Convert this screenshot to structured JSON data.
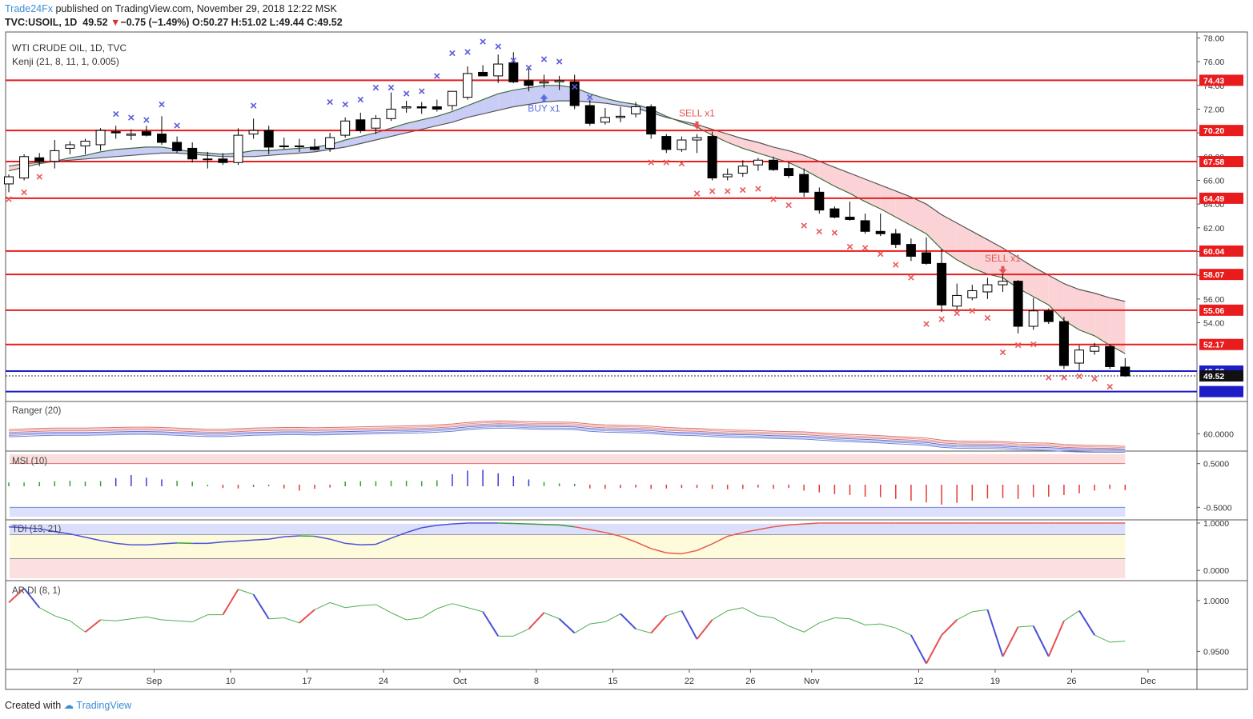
{
  "header": {
    "author": "Trade24Fx",
    "published": "published on TradingView.com, November 29, 2018 12:22 MSK",
    "symbol": "TVC:USOIL, 1D",
    "price": "49.52",
    "change": "−0.75 (−1.49%)",
    "ohlc": "O:50.27 H:51.02 L:49.44 C:49.52"
  },
  "overlay": {
    "title": "WTI CRUDE OIL, 1D, TVC",
    "indicator": "Kenji (21, 8, 11, 1, 0.005)"
  },
  "footer": {
    "created_with": "Created with",
    "brand": "TradingView"
  },
  "colors": {
    "red_line": "#e81c1c",
    "blue_line": "#1d1dc8",
    "cross_blue": "#5b5bdc",
    "cross_red": "#e85a5a",
    "cloud_blue": "#c9ccf5",
    "cloud_red": "#fbd3d6"
  },
  "chart_data": {
    "type": "candlestick",
    "title": "WTI CRUDE OIL, 1D, TVC",
    "ylim": [
      47.5,
      78.5
    ],
    "y_ticks": [
      "78.00",
      "76.00",
      "74.00",
      "72.00",
      "70.00",
      "68.00",
      "66.00",
      "64.00",
      "62.00",
      "60.00",
      "58.00",
      "56.00",
      "54.00"
    ],
    "x_ticks": [
      "27",
      "Sep",
      "10",
      "17",
      "24",
      "Oct",
      "8",
      "15",
      "22",
      "26",
      "Nov",
      "12",
      "19",
      "26",
      "Dec"
    ],
    "x_tick_index": [
      4.5,
      9.5,
      14.5,
      19.5,
      24.5,
      29.5,
      34.5,
      39.5,
      44.5,
      48.5,
      52.5,
      59.5,
      64.5,
      69.5,
      74.5
    ],
    "levels": [
      {
        "value": 74.43,
        "label": "74.43",
        "kind": "red"
      },
      {
        "value": 70.2,
        "label": "70.20",
        "kind": "red"
      },
      {
        "value": 67.58,
        "label": "67.58",
        "kind": "red"
      },
      {
        "value": 64.49,
        "label": "64.49",
        "kind": "red"
      },
      {
        "value": 60.04,
        "label": "60.04",
        "kind": "red"
      },
      {
        "value": 58.07,
        "label": "58.07",
        "kind": "red"
      },
      {
        "value": 55.06,
        "label": "55.06",
        "kind": "red"
      },
      {
        "value": 52.17,
        "label": "52.17",
        "kind": "red"
      },
      {
        "value": 49.93,
        "label": "49.93",
        "kind": "blue"
      },
      {
        "value": 48.2,
        "label": "",
        "kind": "blue"
      }
    ],
    "last_price": {
      "value": 49.52,
      "label": "49.52"
    },
    "ohlc": [
      [
        65.7,
        66.5,
        65.0,
        66.3
      ],
      [
        66.2,
        68.2,
        66.0,
        68.0
      ],
      [
        67.9,
        68.3,
        67.2,
        67.6
      ],
      [
        67.6,
        69.4,
        67.0,
        68.5
      ],
      [
        68.7,
        69.3,
        68.2,
        69.0
      ],
      [
        68.9,
        69.5,
        68.2,
        69.3
      ],
      [
        69.0,
        70.4,
        68.5,
        70.2
      ],
      [
        70.1,
        70.6,
        69.5,
        70.0
      ],
      [
        69.8,
        70.3,
        69.4,
        69.9
      ],
      [
        70.1,
        70.6,
        69.7,
        69.8
      ],
      [
        69.9,
        71.4,
        69.0,
        69.2
      ],
      [
        69.2,
        69.7,
        68.3,
        68.5
      ],
      [
        68.7,
        69.2,
        67.5,
        67.8
      ],
      [
        67.8,
        68.4,
        67.0,
        67.8
      ],
      [
        67.8,
        68.3,
        67.3,
        67.5
      ],
      [
        67.5,
        70.4,
        67.3,
        69.8
      ],
      [
        69.9,
        71.2,
        69.5,
        70.2
      ],
      [
        70.2,
        70.6,
        68.2,
        68.8
      ],
      [
        68.9,
        69.6,
        68.6,
        68.9
      ],
      [
        68.9,
        69.5,
        68.4,
        68.9
      ],
      [
        68.8,
        69.5,
        68.5,
        68.6
      ],
      [
        68.7,
        70.0,
        68.4,
        69.6
      ],
      [
        69.8,
        71.3,
        69.6,
        71.0
      ],
      [
        71.1,
        71.7,
        70.0,
        70.2
      ],
      [
        70.4,
        71.5,
        69.9,
        71.2
      ],
      [
        71.2,
        73.4,
        71.0,
        72.0
      ],
      [
        72.1,
        72.7,
        71.7,
        72.2
      ],
      [
        72.2,
        72.6,
        71.6,
        72.1
      ],
      [
        72.2,
        72.8,
        71.8,
        72.0
      ],
      [
        72.3,
        73.5,
        71.9,
        73.5
      ],
      [
        73.0,
        75.6,
        72.8,
        75.0
      ],
      [
        75.1,
        75.7,
        74.8,
        74.8
      ],
      [
        74.8,
        76.6,
        74.2,
        75.8
      ],
      [
        75.9,
        76.8,
        74.2,
        74.3
      ],
      [
        74.4,
        75.4,
        73.5,
        74.0
      ],
      [
        74.2,
        74.9,
        73.8,
        74.3
      ],
      [
        74.3,
        74.8,
        73.6,
        74.4
      ],
      [
        74.3,
        74.9,
        72.0,
        72.3
      ],
      [
        72.3,
        72.8,
        70.6,
        70.8
      ],
      [
        70.9,
        72.1,
        70.7,
        71.3
      ],
      [
        71.3,
        72.2,
        70.9,
        71.4
      ],
      [
        71.6,
        72.6,
        71.3,
        72.2
      ],
      [
        72.2,
        72.4,
        69.5,
        69.9
      ],
      [
        69.7,
        69.9,
        68.3,
        68.6
      ],
      [
        68.6,
        69.7,
        68.4,
        69.4
      ],
      [
        69.4,
        69.9,
        68.3,
        69.6
      ],
      [
        69.7,
        70.1,
        66.0,
        66.2
      ],
      [
        66.3,
        67.0,
        66.0,
        66.5
      ],
      [
        66.6,
        67.7,
        66.3,
        67.2
      ],
      [
        67.3,
        67.9,
        66.8,
        67.7
      ],
      [
        67.7,
        68.0,
        66.8,
        66.9
      ],
      [
        67.0,
        67.5,
        66.2,
        66.4
      ],
      [
        66.5,
        67.0,
        64.6,
        65.0
      ],
      [
        65.0,
        65.4,
        63.2,
        63.5
      ],
      [
        63.6,
        63.8,
        62.8,
        62.9
      ],
      [
        62.9,
        64.2,
        62.6,
        62.7
      ],
      [
        62.6,
        63.2,
        61.5,
        61.7
      ],
      [
        61.7,
        63.2,
        61.3,
        61.5
      ],
      [
        61.5,
        61.9,
        60.3,
        60.6
      ],
      [
        60.6,
        61.1,
        59.2,
        59.6
      ],
      [
        59.9,
        61.2,
        58.9,
        59.0
      ],
      [
        59.0,
        60.2,
        54.9,
        55.5
      ],
      [
        55.4,
        57.3,
        55.1,
        56.3
      ],
      [
        56.1,
        57.2,
        55.9,
        56.7
      ],
      [
        56.6,
        57.8,
        56.0,
        57.2
      ],
      [
        57.2,
        58.3,
        56.6,
        57.5
      ],
      [
        57.5,
        57.6,
        53.1,
        53.7
      ],
      [
        53.7,
        56.1,
        53.4,
        55.0
      ],
      [
        55.0,
        55.2,
        53.9,
        54.1
      ],
      [
        54.1,
        54.5,
        50.1,
        50.4
      ],
      [
        50.6,
        52.1,
        50.0,
        51.7
      ],
      [
        51.6,
        52.3,
        51.3,
        52.0
      ],
      [
        52.0,
        52.2,
        50.1,
        50.3
      ],
      [
        50.27,
        51.02,
        49.44,
        49.52
      ]
    ],
    "series_fast": [
      66.8,
      67.1,
      67.4,
      67.6,
      67.9,
      68.1,
      68.4,
      68.6,
      68.7,
      68.8,
      68.8,
      68.6,
      68.4,
      68.3,
      68.2,
      68.3,
      68.5,
      68.5,
      68.6,
      68.7,
      68.8,
      69.0,
      69.4,
      69.7,
      70.0,
      70.4,
      70.8,
      71.1,
      71.4,
      71.8,
      72.3,
      72.8,
      73.3,
      73.6,
      73.8,
      74.0,
      74.0,
      73.8,
      73.3,
      72.9,
      72.6,
      72.4,
      72.0,
      71.4,
      70.9,
      70.5,
      69.8,
      69.2,
      68.7,
      68.3,
      67.9,
      67.5,
      66.9,
      66.2,
      65.5,
      64.9,
      64.2,
      63.6,
      62.9,
      62.2,
      61.5,
      60.2,
      59.3,
      58.6,
      58.1,
      57.8,
      56.9,
      56.2,
      55.5,
      54.2,
      53.4,
      52.9,
      52.1,
      51.4
    ],
    "series_slow": [
      67.2,
      67.4,
      67.5,
      67.6,
      67.7,
      67.8,
      67.9,
      68.0,
      68.1,
      68.2,
      68.3,
      68.3,
      68.2,
      68.1,
      68.0,
      68.0,
      68.0,
      68.1,
      68.2,
      68.3,
      68.4,
      68.6,
      68.8,
      69.1,
      69.4,
      69.7,
      70.0,
      70.3,
      70.6,
      70.9,
      71.3,
      71.6,
      71.9,
      72.2,
      72.4,
      72.6,
      72.7,
      72.7,
      72.6,
      72.5,
      72.3,
      72.1,
      71.7,
      71.3,
      71.0,
      70.7,
      70.3,
      69.9,
      69.5,
      69.2,
      68.8,
      68.5,
      68.1,
      67.6,
      67.1,
      66.6,
      66.1,
      65.6,
      65.1,
      64.6,
      64.0,
      63.1,
      62.4,
      61.7,
      61.0,
      60.3,
      59.5,
      58.7,
      58.0,
      57.3,
      56.8,
      56.5,
      56.1,
      55.8
    ],
    "crosses_blue": [
      [
        7,
        71.6
      ],
      [
        8,
        71.3
      ],
      [
        9,
        71.1
      ],
      [
        10,
        72.4
      ],
      [
        11,
        70.6
      ],
      [
        16,
        72.3
      ],
      [
        21,
        72.6
      ],
      [
        22,
        72.4
      ],
      [
        23,
        72.8
      ],
      [
        24,
        73.8
      ],
      [
        25,
        73.8
      ],
      [
        26,
        73.3
      ],
      [
        27,
        73.5
      ],
      [
        28,
        74.8
      ],
      [
        29,
        76.7
      ],
      [
        30,
        76.8
      ],
      [
        31,
        77.7
      ],
      [
        32,
        77.3
      ],
      [
        33,
        76.1
      ],
      [
        34,
        75.5
      ],
      [
        35,
        76.2
      ],
      [
        36,
        76.0
      ],
      [
        37,
        73.9
      ],
      [
        38,
        73.0
      ]
    ],
    "crosses_red": [
      [
        0,
        64.4
      ],
      [
        1,
        65.0
      ],
      [
        2,
        66.3
      ],
      [
        42,
        67.5
      ],
      [
        43,
        67.5
      ],
      [
        44,
        67.4
      ],
      [
        45,
        64.9
      ],
      [
        46,
        65.1
      ],
      [
        47,
        65.1
      ],
      [
        48,
        65.2
      ],
      [
        49,
        65.3
      ],
      [
        50,
        64.4
      ],
      [
        51,
        63.9
      ],
      [
        52,
        62.2
      ],
      [
        53,
        61.7
      ],
      [
        54,
        61.6
      ],
      [
        55,
        60.4
      ],
      [
        56,
        60.3
      ],
      [
        57,
        59.8
      ],
      [
        58,
        58.9
      ],
      [
        59,
        57.8
      ],
      [
        60,
        53.9
      ],
      [
        61,
        54.3
      ],
      [
        62,
        54.8
      ],
      [
        63,
        55.0
      ],
      [
        64,
        54.4
      ],
      [
        65,
        51.5
      ],
      [
        66,
        52.1
      ],
      [
        67,
        52.2
      ],
      [
        68,
        49.4
      ],
      [
        69,
        49.4
      ],
      [
        70,
        49.5
      ],
      [
        71,
        49.3
      ],
      [
        72,
        48.6
      ]
    ],
    "signals": [
      {
        "index": 35,
        "label": "BUY x1",
        "kind": "buy",
        "value": 73.0
      },
      {
        "index": 45,
        "label": "SELL x1",
        "kind": "sell",
        "value": 70.7
      },
      {
        "index": 65,
        "label": "SELL x1",
        "kind": "sell",
        "value": 58.5
      }
    ],
    "panels": [
      {
        "name": "Ranger (20)",
        "ylim": [
          55,
          70
        ],
        "ticks": [
          "60.0000"
        ],
        "tick_values": [
          60
        ]
      },
      {
        "name": "MSI (10)",
        "ylim": [
          -0.75,
          0.75
        ],
        "ticks": [
          "0.5000",
          "-0.5000"
        ],
        "tick_values": [
          0.5,
          -0.5
        ]
      },
      {
        "name": "TDI (13, 21)",
        "ylim": [
          -0.2,
          1.05
        ],
        "ticks": [
          "1.0000",
          "0.0000"
        ],
        "tick_values": [
          1,
          0
        ]
      },
      {
        "name": "AR DI (8, 1)",
        "ylim": [
          0.933,
          1.018
        ],
        "ticks": [
          "1.0000",
          "0.9500"
        ],
        "tick_values": [
          1,
          0.95
        ]
      }
    ],
    "ranger_upper": [
      61.3,
      61.5,
      61.7,
      61.8,
      61.8,
      61.8,
      61.9,
      62.0,
      62.1,
      62.1,
      62.0,
      61.8,
      61.6,
      61.4,
      61.4,
      61.6,
      61.8,
      61.9,
      62.0,
      62.0,
      61.9,
      62.0,
      62.1,
      62.2,
      62.3,
      62.4,
      62.5,
      62.6,
      62.8,
      63.1,
      63.6,
      63.9,
      64.1,
      64.0,
      63.8,
      63.7,
      63.7,
      63.6,
      63.1,
      62.8,
      62.7,
      62.6,
      62.4,
      62.0,
      61.8,
      61.7,
      61.4,
      61.2,
      61.1,
      61.0,
      60.8,
      60.7,
      60.6,
      60.3,
      60.0,
      59.8,
      59.6,
      59.4,
      59.1,
      58.9,
      58.6,
      58.0,
      57.7,
      57.6,
      57.6,
      57.5,
      57.2,
      57.1,
      57.0,
      56.6,
      56.4,
      56.3,
      56.2,
      56.0
    ],
    "ranger_lower": [
      59.9,
      60.1,
      60.3,
      60.4,
      60.4,
      60.4,
      60.5,
      60.6,
      60.7,
      60.7,
      60.6,
      60.4,
      60.2,
      60.0,
      60.0,
      60.2,
      60.4,
      60.5,
      60.6,
      60.6,
      60.5,
      60.6,
      60.7,
      60.8,
      60.9,
      61.0,
      61.1,
      61.2,
      61.4,
      61.7,
      62.2,
      62.5,
      62.7,
      62.6,
      62.4,
      62.3,
      62.3,
      62.2,
      61.7,
      61.4,
      61.3,
      61.2,
      61.0,
      60.6,
      60.4,
      60.3,
      60.0,
      59.8,
      59.7,
      59.6,
      59.4,
      59.3,
      59.2,
      58.9,
      58.6,
      58.4,
      58.2,
      58.0,
      57.7,
      57.5,
      57.2,
      56.6,
      56.3,
      56.2,
      56.2,
      56.1,
      55.8,
      55.7,
      55.6,
      55.3,
      55.1,
      55.0,
      55.0,
      55.0
    ],
    "msi": [
      0.05,
      0.05,
      0.06,
      0.08,
      0.09,
      0.07,
      0.08,
      0.15,
      0.22,
      0.16,
      0.12,
      0.09,
      0.07,
      0,
      -0.04,
      -0.05,
      -0.02,
      0,
      -0.05,
      -0.1,
      -0.06,
      -0.03,
      0.07,
      0.08,
      0.08,
      0.09,
      0.09,
      0.08,
      0.1,
      0.24,
      0.32,
      0.34,
      0.26,
      0.2,
      0.12,
      0.06,
      0.03,
      0.02,
      -0.05,
      -0.06,
      -0.04,
      -0.03,
      -0.06,
      -0.05,
      -0.04,
      -0.04,
      -0.06,
      -0.07,
      -0.06,
      -0.03,
      -0.06,
      -0.04,
      -0.1,
      -0.14,
      -0.18,
      -0.2,
      -0.24,
      -0.25,
      -0.29,
      -0.33,
      -0.37,
      -0.42,
      -0.38,
      -0.33,
      -0.28,
      -0.27,
      -0.29,
      -0.25,
      -0.24,
      -0.2,
      -0.16,
      -0.1,
      -0.06,
      -0.09
    ],
    "tdi": [
      0.92,
      0.9,
      0.88,
      0.82,
      0.77,
      0.7,
      0.63,
      0.57,
      0.54,
      0.54,
      0.56,
      0.58,
      0.57,
      0.57,
      0.6,
      0.62,
      0.64,
      0.66,
      0.71,
      0.73,
      0.72,
      0.66,
      0.57,
      0.54,
      0.55,
      0.68,
      0.8,
      0.9,
      0.95,
      0.98,
      1.0,
      1.0,
      1.0,
      0.99,
      0.98,
      0.97,
      0.96,
      0.92,
      0.86,
      0.8,
      0.72,
      0.6,
      0.46,
      0.37,
      0.35,
      0.42,
      0.56,
      0.72,
      0.8,
      0.86,
      0.92,
      0.96,
      0.98,
      1.0,
      1.0,
      1.0,
      1.0,
      1.0,
      1.0,
      1.0,
      1.0,
      1.0,
      1.0,
      1.0,
      1.0,
      1.0,
      1.0,
      1.0,
      1.0,
      1.0,
      1.0,
      1.0,
      1.0,
      1.0
    ],
    "ardi": [
      0.998,
      1.012,
      0.993,
      0.985,
      0.98,
      0.969,
      0.981,
      0.98,
      0.982,
      0.984,
      0.981,
      0.98,
      0.979,
      0.986,
      0.986,
      1.011,
      1.006,
      0.982,
      0.983,
      0.978,
      0.991,
      0.998,
      0.993,
      0.995,
      0.996,
      0.988,
      0.981,
      0.983,
      0.992,
      0.997,
      0.993,
      0.989,
      0.965,
      0.965,
      0.972,
      0.988,
      0.982,
      0.968,
      0.977,
      0.979,
      0.987,
      0.972,
      0.968,
      0.985,
      0.99,
      0.962,
      0.981,
      0.99,
      0.993,
      0.985,
      0.983,
      0.975,
      0.969,
      0.978,
      0.983,
      0.982,
      0.976,
      0.977,
      0.973,
      0.966,
      0.938,
      0.966,
      0.981,
      0.989,
      0.991,
      0.945,
      0.974,
      0.975,
      0.945,
      0.98,
      0.99,
      0.966,
      0.959,
      0.96
    ]
  }
}
